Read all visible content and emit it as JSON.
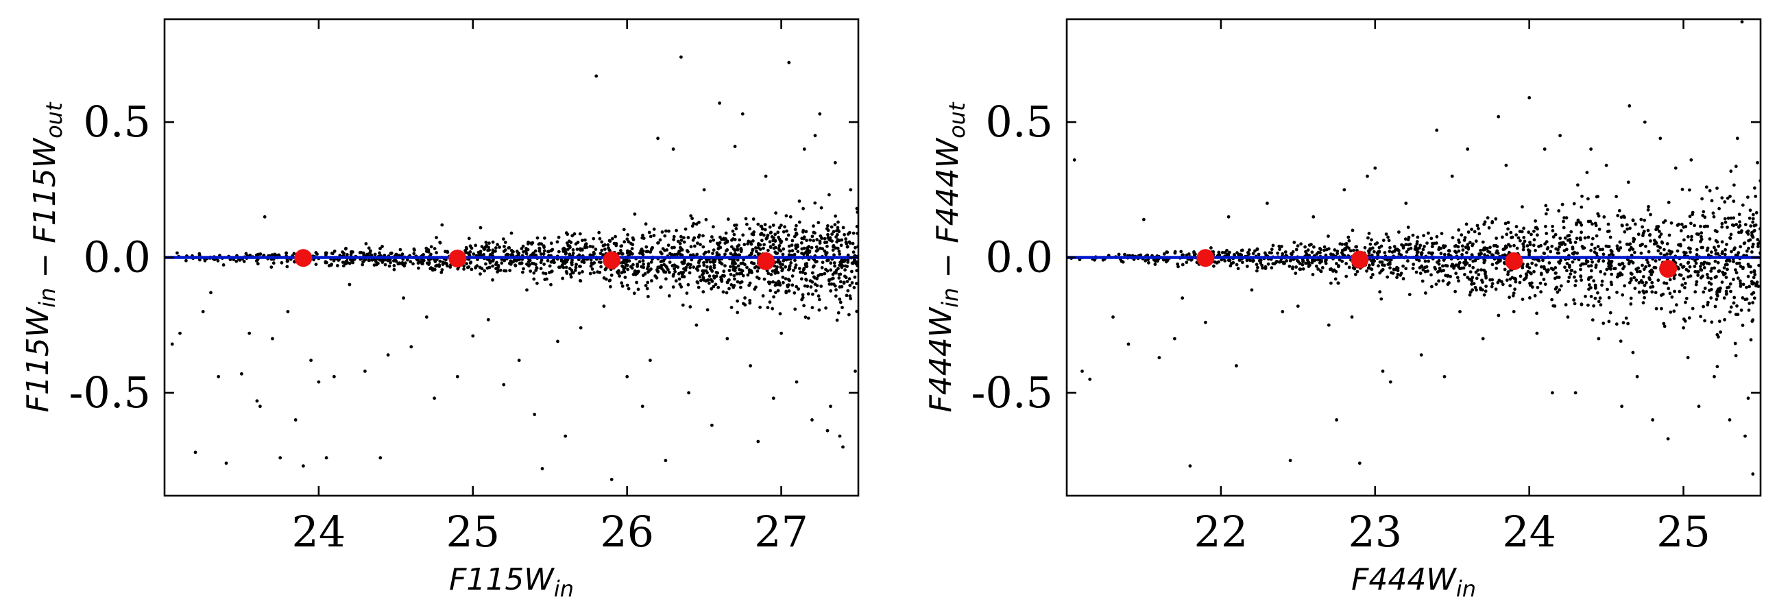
{
  "chart_data": [
    {
      "type": "scatter",
      "title": "",
      "xlabel": "F115W",
      "xlabel_sub": "in",
      "ylabel_parts": [
        {
          "t": "F115W",
          "s": "in"
        },
        {
          "t": " − ",
          "s": ""
        },
        {
          "t": "F115W",
          "s": "out"
        }
      ],
      "xlim": [
        23.0,
        27.5
      ],
      "ylim": [
        -0.88,
        0.88
      ],
      "xticks": [
        24,
        25,
        26,
        27
      ],
      "xtick_labels": [
        "24",
        "25",
        "26",
        "27"
      ],
      "yticks": [
        -0.5,
        0.0,
        0.5
      ],
      "ytick_labels": [
        "-0.5",
        "0.0",
        "0.5"
      ],
      "grid": false,
      "reference_line": {
        "y": 0.0,
        "color": "#0018cc"
      },
      "binned_medians": {
        "color": "#ee1111",
        "x": [
          23.9,
          24.9,
          25.9,
          26.9
        ],
        "y": [
          -0.002,
          -0.004,
          -0.01,
          -0.014
        ]
      },
      "scatter": {
        "color": "#000000",
        "x_min": 23.0,
        "x_max": 27.5,
        "n_points": 1700,
        "density_profile": "increasing with magnitude",
        "y_spread_start": 0.006,
        "y_spread_end": 0.09,
        "outliers": [
          [
            23.05,
            -0.32
          ],
          [
            23.1,
            -0.28
          ],
          [
            23.2,
            -0.72
          ],
          [
            23.3,
            -0.13
          ],
          [
            23.35,
            -0.44
          ],
          [
            23.4,
            -0.76
          ],
          [
            23.5,
            -0.43
          ],
          [
            23.55,
            -0.28
          ],
          [
            23.6,
            -0.53
          ],
          [
            23.65,
            0.15
          ],
          [
            23.7,
            -0.3
          ],
          [
            23.75,
            -0.74
          ],
          [
            23.8,
            -0.2
          ],
          [
            23.85,
            -0.6
          ],
          [
            23.9,
            -0.77
          ],
          [
            23.95,
            -0.38
          ],
          [
            24.0,
            -0.46
          ],
          [
            24.05,
            -0.74
          ],
          [
            24.1,
            -0.44
          ],
          [
            24.2,
            -0.1
          ],
          [
            24.3,
            -0.42
          ],
          [
            24.4,
            -0.74
          ],
          [
            24.55,
            -0.15
          ],
          [
            24.6,
            -0.33
          ],
          [
            24.7,
            -0.22
          ],
          [
            24.75,
            -0.52
          ],
          [
            24.8,
            0.12
          ],
          [
            24.9,
            -0.44
          ],
          [
            25.0,
            -0.29
          ],
          [
            25.05,
            0.11
          ],
          [
            25.1,
            -0.23
          ],
          [
            25.2,
            -0.47
          ],
          [
            25.3,
            -0.38
          ],
          [
            25.35,
            -0.12
          ],
          [
            25.4,
            -0.58
          ],
          [
            25.45,
            -0.78
          ],
          [
            25.55,
            -0.31
          ],
          [
            25.6,
            -0.66
          ],
          [
            25.7,
            -0.26
          ],
          [
            25.8,
            0.67
          ],
          [
            25.85,
            -0.18
          ],
          [
            25.9,
            -0.82
          ],
          [
            26.0,
            -0.44
          ],
          [
            26.05,
            0.16
          ],
          [
            26.1,
            -0.55
          ],
          [
            26.2,
            0.44
          ],
          [
            26.25,
            -0.75
          ],
          [
            26.3,
            0.4
          ],
          [
            26.35,
            0.74
          ],
          [
            26.4,
            -0.5
          ],
          [
            26.45,
            -0.25
          ],
          [
            26.5,
            0.25
          ],
          [
            26.55,
            -0.62
          ],
          [
            26.6,
            0.57
          ],
          [
            26.65,
            -0.3
          ],
          [
            26.7,
            0.41
          ],
          [
            26.75,
            0.53
          ],
          [
            26.8,
            -0.4
          ],
          [
            26.85,
            -0.68
          ],
          [
            26.9,
            0.3
          ],
          [
            26.95,
            -0.52
          ],
          [
            27.0,
            -0.28
          ],
          [
            27.05,
            0.72
          ],
          [
            27.1,
            -0.46
          ],
          [
            27.15,
            0.4
          ],
          [
            27.2,
            -0.6
          ],
          [
            27.25,
            0.53
          ],
          [
            27.3,
            -0.64
          ],
          [
            27.35,
            0.35
          ],
          [
            27.4,
            -0.7
          ],
          [
            27.45,
            0.25
          ],
          [
            27.48,
            -0.42
          ],
          [
            27.32,
            -0.55
          ],
          [
            27.22,
            0.45
          ],
          [
            27.38,
            -0.66
          ],
          [
            26.15,
            -0.38
          ],
          [
            25.25,
            0.09
          ],
          [
            24.45,
            -0.36
          ],
          [
            23.62,
            -0.55
          ],
          [
            23.25,
            -0.2
          ]
        ]
      }
    },
    {
      "type": "scatter",
      "title": "",
      "xlabel": "F444W",
      "xlabel_sub": "in",
      "ylabel_parts": [
        {
          "t": "F444W",
          "s": "in"
        },
        {
          "t": " − ",
          "s": ""
        },
        {
          "t": "F444W",
          "s": "out"
        }
      ],
      "xlim": [
        21.0,
        25.5
      ],
      "ylim": [
        -0.88,
        0.88
      ],
      "xticks": [
        22,
        23,
        24,
        25
      ],
      "xtick_labels": [
        "22",
        "23",
        "24",
        "25"
      ],
      "yticks": [
        -0.5,
        0.0,
        0.5
      ],
      "ytick_labels": [
        "-0.5",
        "0.0",
        "0.5"
      ],
      "grid": false,
      "reference_line": {
        "y": 0.0,
        "color": "#0018cc"
      },
      "binned_medians": {
        "color": "#ee1111",
        "x": [
          21.9,
          22.9,
          23.9,
          24.9
        ],
        "y": [
          -0.002,
          -0.008,
          -0.014,
          -0.042
        ]
      },
      "scatter": {
        "color": "#000000",
        "x_min": 21.0,
        "x_max": 25.5,
        "n_points": 1700,
        "density_profile": "increasing with magnitude",
        "y_spread_start": 0.006,
        "y_spread_end": 0.14,
        "outliers": [
          [
            21.05,
            0.36
          ],
          [
            21.1,
            -0.42
          ],
          [
            21.15,
            -0.45
          ],
          [
            21.3,
            -0.22
          ],
          [
            21.4,
            -0.32
          ],
          [
            21.5,
            0.14
          ],
          [
            21.6,
            -0.37
          ],
          [
            21.7,
            -0.3
          ],
          [
            21.8,
            -0.77
          ],
          [
            21.9,
            -0.24
          ],
          [
            22.05,
            0.15
          ],
          [
            22.1,
            -0.4
          ],
          [
            22.2,
            -0.12
          ],
          [
            22.3,
            0.2
          ],
          [
            22.45,
            -0.75
          ],
          [
            22.5,
            -0.18
          ],
          [
            22.6,
            0.15
          ],
          [
            22.7,
            -0.25
          ],
          [
            22.75,
            -0.6
          ],
          [
            22.8,
            0.25
          ],
          [
            22.9,
            -0.76
          ],
          [
            22.95,
            0.3
          ],
          [
            23.0,
            0.33
          ],
          [
            23.05,
            -0.42
          ],
          [
            23.1,
            -0.46
          ],
          [
            23.2,
            0.2
          ],
          [
            23.3,
            -0.36
          ],
          [
            23.4,
            0.47
          ],
          [
            23.45,
            -0.44
          ],
          [
            23.5,
            0.3
          ],
          [
            23.6,
            0.4
          ],
          [
            23.7,
            -0.3
          ],
          [
            23.8,
            0.52
          ],
          [
            23.85,
            0.34
          ],
          [
            23.9,
            -0.2
          ],
          [
            24.0,
            0.59
          ],
          [
            24.05,
            -0.28
          ],
          [
            24.1,
            0.4
          ],
          [
            24.15,
            -0.5
          ],
          [
            24.2,
            0.45
          ],
          [
            24.3,
            -0.5
          ],
          [
            24.4,
            0.4
          ],
          [
            24.45,
            -0.3
          ],
          [
            24.5,
            0.34
          ],
          [
            24.6,
            -0.55
          ],
          [
            24.65,
            0.56
          ],
          [
            24.7,
            -0.44
          ],
          [
            24.75,
            0.5
          ],
          [
            24.8,
            -0.6
          ],
          [
            24.85,
            0.44
          ],
          [
            24.9,
            -0.67
          ],
          [
            24.95,
            0.33
          ],
          [
            25.0,
            -0.26
          ],
          [
            25.05,
            0.36
          ],
          [
            25.1,
            -0.55
          ],
          [
            25.15,
            0.26
          ],
          [
            25.2,
            -0.44
          ],
          [
            25.25,
            0.22
          ],
          [
            25.3,
            -0.6
          ],
          [
            25.35,
            0.44
          ],
          [
            25.38,
            0.87
          ],
          [
            25.4,
            -0.66
          ],
          [
            25.45,
            -0.8
          ],
          [
            25.48,
            0.35
          ],
          [
            25.42,
            -0.52
          ],
          [
            24.25,
            -0.22
          ],
          [
            23.55,
            -0.2
          ],
          [
            22.85,
            -0.22
          ],
          [
            22.4,
            -0.2
          ],
          [
            21.75,
            -0.15
          ]
        ]
      }
    }
  ]
}
